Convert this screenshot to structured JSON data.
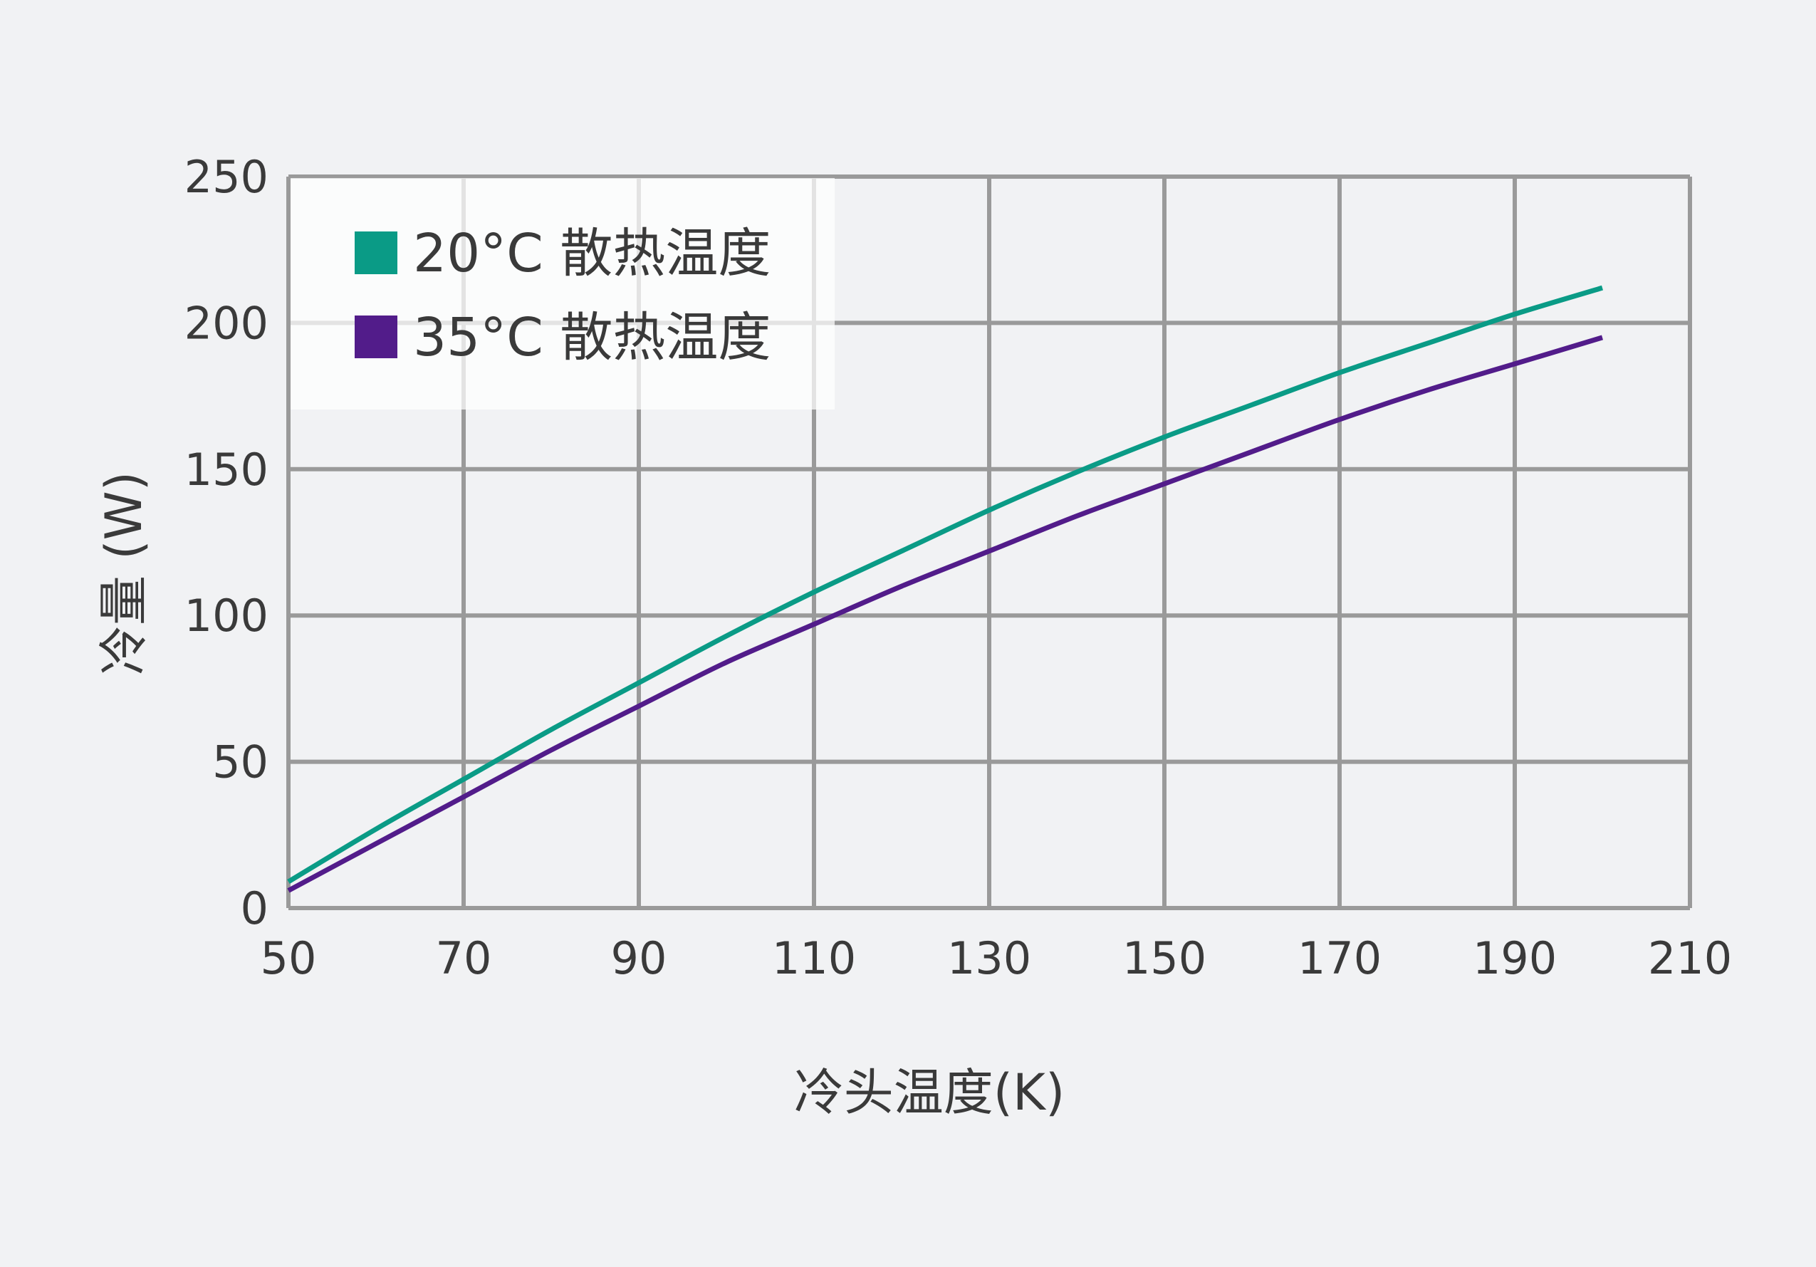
{
  "chart_data": {
    "type": "line",
    "title": "",
    "xlabel": "冷头温度(K)",
    "ylabel": "冷量 (W)",
    "xlim": [
      50,
      210
    ],
    "ylim": [
      0,
      250
    ],
    "x_ticks": [
      50,
      70,
      90,
      110,
      130,
      150,
      170,
      190,
      210
    ],
    "y_ticks": [
      0,
      50,
      100,
      150,
      200,
      250
    ],
    "grid": true,
    "legend_position": "top-left",
    "series": [
      {
        "name": "20°C 散热温度",
        "color": "#0a9b86",
        "x": [
          50,
          60,
          70,
          80,
          90,
          100,
          110,
          120,
          130,
          140,
          150,
          160,
          170,
          180,
          190,
          200
        ],
        "values": [
          9,
          27,
          44,
          61,
          77,
          93,
          108,
          122,
          136,
          149,
          161,
          172,
          183,
          193,
          203,
          212
        ]
      },
      {
        "name": "35°C 散热温度",
        "color": "#521c8a",
        "x": [
          50,
          60,
          70,
          80,
          90,
          100,
          110,
          120,
          130,
          140,
          150,
          160,
          170,
          180,
          190,
          200
        ],
        "values": [
          6,
          22,
          38,
          54,
          69,
          84,
          97,
          110,
          122,
          134,
          145,
          156,
          167,
          177,
          186,
          195
        ]
      }
    ]
  }
}
